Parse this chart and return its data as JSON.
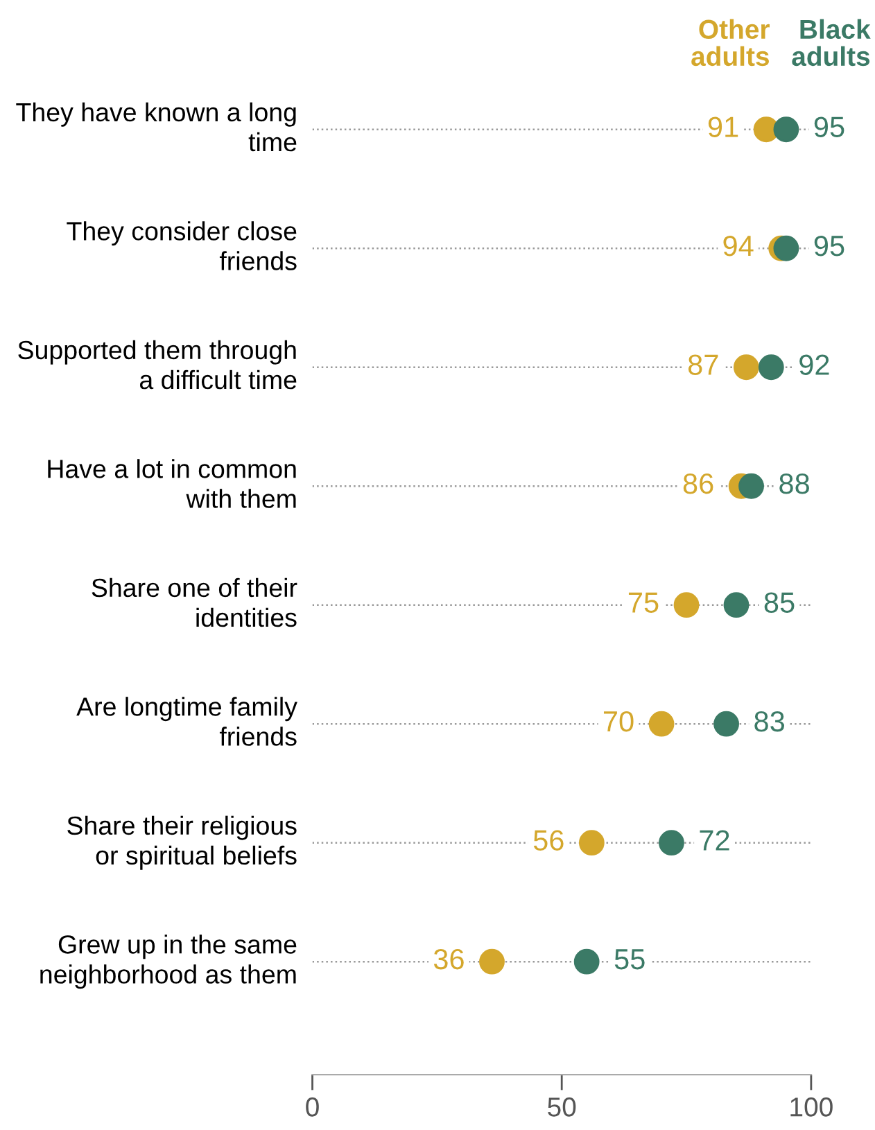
{
  "chart_data": {
    "type": "scatter",
    "orientation": "horizontal",
    "categories": [
      "They have known a long time",
      "They consider close friends",
      "Supported them through a difficult time",
      "Have a lot in common with them",
      "Share one of their identities",
      "Are longtime family friends",
      "Share their religious or spiritual beliefs",
      "Grew up in the same neighborhood as them"
    ],
    "series": [
      {
        "name": "Other adults",
        "color": "#d4a72c",
        "values": [
          91,
          94,
          87,
          86,
          75,
          70,
          56,
          36
        ]
      },
      {
        "name": "Black adults",
        "color": "#3b7a66",
        "values": [
          95,
          95,
          92,
          88,
          85,
          83,
          72,
          55
        ]
      }
    ],
    "xlim": [
      0,
      100
    ],
    "xticks": [
      0,
      50,
      100
    ],
    "grid": "y",
    "line_style": "dotted",
    "marker": "circle",
    "data_labels": true,
    "legend": "top right"
  }
}
